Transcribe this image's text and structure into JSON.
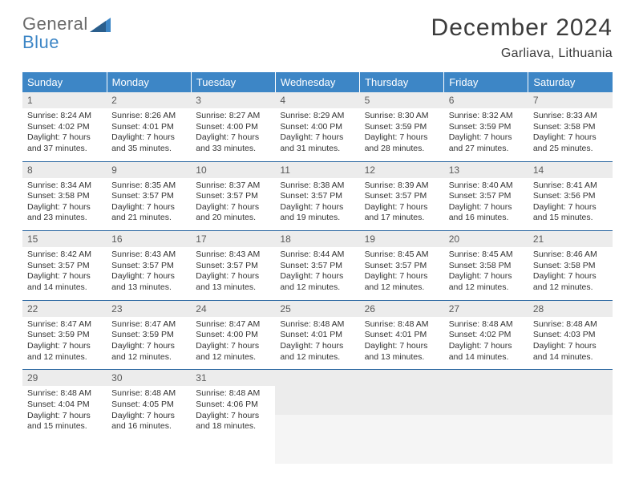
{
  "logo": {
    "word1": "General",
    "word2": "Blue"
  },
  "header": {
    "title": "December 2024",
    "location": "Garliava, Lithuania"
  },
  "colors": {
    "header_bg": "#3d86c6",
    "header_text": "#ffffff",
    "row_border": "#2f6aa3",
    "daynum_bg": "#ececec",
    "body_text": "#333333",
    "title_text": "#3b3b3b",
    "logo_gray": "#6a6a6a",
    "logo_blue": "#3d86c6"
  },
  "typography": {
    "title_fontsize": 30,
    "subtitle_fontsize": 16,
    "header_fontsize": 13,
    "cell_fontsize": 10.5,
    "font_family": "Arial"
  },
  "weekdays": [
    "Sunday",
    "Monday",
    "Tuesday",
    "Wednesday",
    "Thursday",
    "Friday",
    "Saturday"
  ],
  "weeks": [
    [
      {
        "n": "1",
        "sr": "Sunrise: 8:24 AM",
        "ss": "Sunset: 4:02 PM",
        "dl": "Daylight: 7 hours and 37 minutes."
      },
      {
        "n": "2",
        "sr": "Sunrise: 8:26 AM",
        "ss": "Sunset: 4:01 PM",
        "dl": "Daylight: 7 hours and 35 minutes."
      },
      {
        "n": "3",
        "sr": "Sunrise: 8:27 AM",
        "ss": "Sunset: 4:00 PM",
        "dl": "Daylight: 7 hours and 33 minutes."
      },
      {
        "n": "4",
        "sr": "Sunrise: 8:29 AM",
        "ss": "Sunset: 4:00 PM",
        "dl": "Daylight: 7 hours and 31 minutes."
      },
      {
        "n": "5",
        "sr": "Sunrise: 8:30 AM",
        "ss": "Sunset: 3:59 PM",
        "dl": "Daylight: 7 hours and 28 minutes."
      },
      {
        "n": "6",
        "sr": "Sunrise: 8:32 AM",
        "ss": "Sunset: 3:59 PM",
        "dl": "Daylight: 7 hours and 27 minutes."
      },
      {
        "n": "7",
        "sr": "Sunrise: 8:33 AM",
        "ss": "Sunset: 3:58 PM",
        "dl": "Daylight: 7 hours and 25 minutes."
      }
    ],
    [
      {
        "n": "8",
        "sr": "Sunrise: 8:34 AM",
        "ss": "Sunset: 3:58 PM",
        "dl": "Daylight: 7 hours and 23 minutes."
      },
      {
        "n": "9",
        "sr": "Sunrise: 8:35 AM",
        "ss": "Sunset: 3:57 PM",
        "dl": "Daylight: 7 hours and 21 minutes."
      },
      {
        "n": "10",
        "sr": "Sunrise: 8:37 AM",
        "ss": "Sunset: 3:57 PM",
        "dl": "Daylight: 7 hours and 20 minutes."
      },
      {
        "n": "11",
        "sr": "Sunrise: 8:38 AM",
        "ss": "Sunset: 3:57 PM",
        "dl": "Daylight: 7 hours and 19 minutes."
      },
      {
        "n": "12",
        "sr": "Sunrise: 8:39 AM",
        "ss": "Sunset: 3:57 PM",
        "dl": "Daylight: 7 hours and 17 minutes."
      },
      {
        "n": "13",
        "sr": "Sunrise: 8:40 AM",
        "ss": "Sunset: 3:57 PM",
        "dl": "Daylight: 7 hours and 16 minutes."
      },
      {
        "n": "14",
        "sr": "Sunrise: 8:41 AM",
        "ss": "Sunset: 3:56 PM",
        "dl": "Daylight: 7 hours and 15 minutes."
      }
    ],
    [
      {
        "n": "15",
        "sr": "Sunrise: 8:42 AM",
        "ss": "Sunset: 3:57 PM",
        "dl": "Daylight: 7 hours and 14 minutes."
      },
      {
        "n": "16",
        "sr": "Sunrise: 8:43 AM",
        "ss": "Sunset: 3:57 PM",
        "dl": "Daylight: 7 hours and 13 minutes."
      },
      {
        "n": "17",
        "sr": "Sunrise: 8:43 AM",
        "ss": "Sunset: 3:57 PM",
        "dl": "Daylight: 7 hours and 13 minutes."
      },
      {
        "n": "18",
        "sr": "Sunrise: 8:44 AM",
        "ss": "Sunset: 3:57 PM",
        "dl": "Daylight: 7 hours and 12 minutes."
      },
      {
        "n": "19",
        "sr": "Sunrise: 8:45 AM",
        "ss": "Sunset: 3:57 PM",
        "dl": "Daylight: 7 hours and 12 minutes."
      },
      {
        "n": "20",
        "sr": "Sunrise: 8:45 AM",
        "ss": "Sunset: 3:58 PM",
        "dl": "Daylight: 7 hours and 12 minutes."
      },
      {
        "n": "21",
        "sr": "Sunrise: 8:46 AM",
        "ss": "Sunset: 3:58 PM",
        "dl": "Daylight: 7 hours and 12 minutes."
      }
    ],
    [
      {
        "n": "22",
        "sr": "Sunrise: 8:47 AM",
        "ss": "Sunset: 3:59 PM",
        "dl": "Daylight: 7 hours and 12 minutes."
      },
      {
        "n": "23",
        "sr": "Sunrise: 8:47 AM",
        "ss": "Sunset: 3:59 PM",
        "dl": "Daylight: 7 hours and 12 minutes."
      },
      {
        "n": "24",
        "sr": "Sunrise: 8:47 AM",
        "ss": "Sunset: 4:00 PM",
        "dl": "Daylight: 7 hours and 12 minutes."
      },
      {
        "n": "25",
        "sr": "Sunrise: 8:48 AM",
        "ss": "Sunset: 4:01 PM",
        "dl": "Daylight: 7 hours and 12 minutes."
      },
      {
        "n": "26",
        "sr": "Sunrise: 8:48 AM",
        "ss": "Sunset: 4:01 PM",
        "dl": "Daylight: 7 hours and 13 minutes."
      },
      {
        "n": "27",
        "sr": "Sunrise: 8:48 AM",
        "ss": "Sunset: 4:02 PM",
        "dl": "Daylight: 7 hours and 14 minutes."
      },
      {
        "n": "28",
        "sr": "Sunrise: 8:48 AM",
        "ss": "Sunset: 4:03 PM",
        "dl": "Daylight: 7 hours and 14 minutes."
      }
    ],
    [
      {
        "n": "29",
        "sr": "Sunrise: 8:48 AM",
        "ss": "Sunset: 4:04 PM",
        "dl": "Daylight: 7 hours and 15 minutes."
      },
      {
        "n": "30",
        "sr": "Sunrise: 8:48 AM",
        "ss": "Sunset: 4:05 PM",
        "dl": "Daylight: 7 hours and 16 minutes."
      },
      {
        "n": "31",
        "sr": "Sunrise: 8:48 AM",
        "ss": "Sunset: 4:06 PM",
        "dl": "Daylight: 7 hours and 18 minutes."
      },
      null,
      null,
      null,
      null
    ]
  ]
}
